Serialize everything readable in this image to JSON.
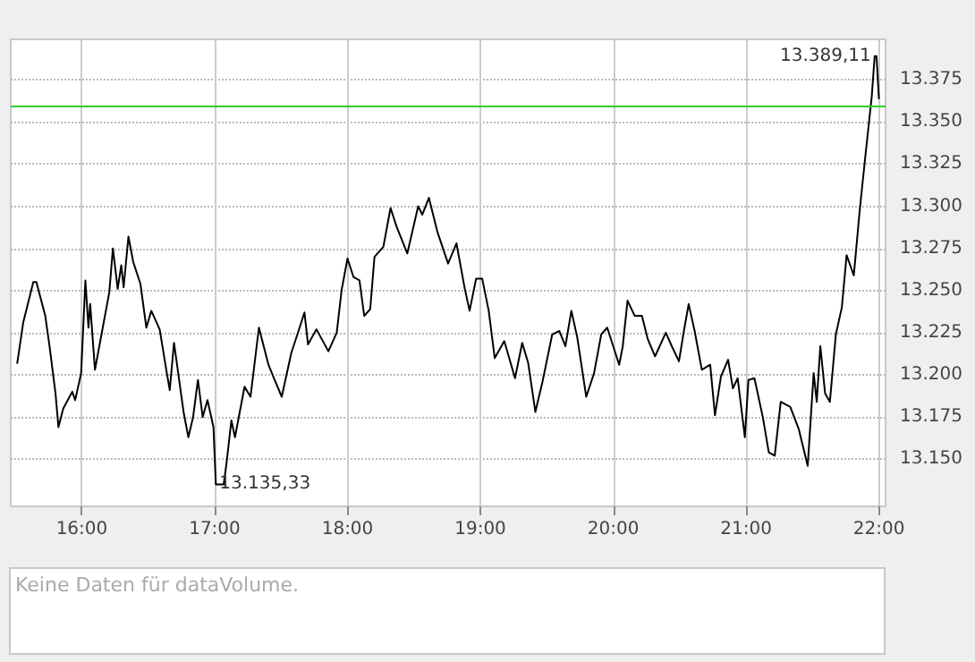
{
  "chart_data": {
    "type": "line",
    "color": "#000000",
    "grid": true,
    "marker": "none",
    "line_style": "solid",
    "xlim": [
      15.465,
      22.05
    ],
    "ylim": [
      13122,
      13399
    ],
    "xticks": [
      {
        "value": 16,
        "label": "16:00"
      },
      {
        "value": 17,
        "label": "17:00"
      },
      {
        "value": 18,
        "label": "18:00"
      },
      {
        "value": 19,
        "label": "19:00"
      },
      {
        "value": 20,
        "label": "20:00"
      },
      {
        "value": 21,
        "label": "21:00"
      },
      {
        "value": 22,
        "label": "22:00"
      }
    ],
    "yticks": [
      {
        "value": 13150,
        "label": "13.150"
      },
      {
        "value": 13175,
        "label": "13.175"
      },
      {
        "value": 13200,
        "label": "13.200"
      },
      {
        "value": 13225,
        "label": "13.225"
      },
      {
        "value": 13250,
        "label": "13.250"
      },
      {
        "value": 13275,
        "label": "13.275"
      },
      {
        "value": 13300,
        "label": "13.300"
      },
      {
        "value": 13325,
        "label": "13.325"
      },
      {
        "value": 13350,
        "label": "13.350"
      },
      {
        "value": 13375,
        "label": "13.375"
      }
    ],
    "ref_lines": [
      {
        "axis": "y",
        "value": 13359,
        "color": "#33cc33"
      }
    ],
    "annotations": [
      {
        "text": "13.135,33",
        "x": 17.009,
        "y": 13135.33
      },
      {
        "text": "13.389,11",
        "x": 21.968,
        "y": 13389.11
      },
      "Keine Daten für dataVolume."
    ],
    "x": [
      15.514,
      15.559,
      15.635,
      15.658,
      15.725,
      15.757,
      15.802,
      15.824,
      15.86,
      15.928,
      15.95,
      15.995,
      16.027,
      16.05,
      16.063,
      16.099,
      16.153,
      16.207,
      16.234,
      16.27,
      16.297,
      16.315,
      16.351,
      16.387,
      16.441,
      16.486,
      16.523,
      16.586,
      16.64,
      16.662,
      16.694,
      16.766,
      16.802,
      16.838,
      16.874,
      16.91,
      16.946,
      16.991,
      17.009,
      17.068,
      17.09,
      17.126,
      17.153,
      17.189,
      17.225,
      17.27,
      17.333,
      17.405,
      17.441,
      17.505,
      17.577,
      17.631,
      17.676,
      17.703,
      17.766,
      17.856,
      17.919,
      17.955,
      18.0,
      18.045,
      18.09,
      18.126,
      18.171,
      18.203,
      18.27,
      18.324,
      18.369,
      18.45,
      18.532,
      18.563,
      18.613,
      18.676,
      18.757,
      18.82,
      18.883,
      18.919,
      18.968,
      19.014,
      19.063,
      19.108,
      19.18,
      19.261,
      19.315,
      19.36,
      19.414,
      19.468,
      19.541,
      19.595,
      19.64,
      19.685,
      19.73,
      19.797,
      19.856,
      19.91,
      19.955,
      20.0,
      20.045,
      20.072,
      20.108,
      20.162,
      20.216,
      20.261,
      20.315,
      20.396,
      20.441,
      20.495,
      20.532,
      20.568,
      20.613,
      20.667,
      20.73,
      20.766,
      20.811,
      20.865,
      20.901,
      20.937,
      20.991,
      21.018,
      21.063,
      21.126,
      21.171,
      21.216,
      21.261,
      21.333,
      21.396,
      21.464,
      21.509,
      21.532,
      21.559,
      21.595,
      21.631,
      21.676,
      21.721,
      21.757,
      21.811,
      21.856,
      21.901,
      21.946,
      21.968,
      21.982,
      22.0
    ],
    "values": [
      13207,
      13231,
      13255,
      13255,
      13235,
      13217,
      13189,
      13169,
      13180,
      13190,
      13185,
      13201,
      13256,
      13228,
      13242,
      13203,
      13226,
      13249,
      13275,
      13251,
      13265,
      13252,
      13282,
      13267,
      13254,
      13228,
      13238,
      13227,
      13201,
      13191,
      13219,
      13178,
      13163,
      13175,
      13197,
      13175,
      13185,
      13169,
      13135,
      13135,
      13148,
      13173,
      13163,
      13178,
      13193,
      13187,
      13228,
      13206,
      13199,
      13187,
      13213,
      13226,
      13237,
      13218,
      13227,
      13214,
      13225,
      13250,
      13269,
      13258,
      13256,
      13235,
      13239,
      13270,
      13276,
      13299,
      13288,
      13272,
      13300,
      13295,
      13305,
      13285,
      13266,
      13278,
      13251,
      13238,
      13257,
      13257,
      13238,
      13210,
      13220,
      13198,
      13219,
      13207,
      13178,
      13196,
      13224,
      13226,
      13217,
      13238,
      13222,
      13187,
      13201,
      13224,
      13228,
      13217,
      13206,
      13217,
      13244,
      13235,
      13235,
      13221,
      13211,
      13225,
      13217,
      13208,
      13226,
      13242,
      13226,
      13203,
      13206,
      13176,
      13199,
      13209,
      13192,
      13198,
      13163,
      13197,
      13198,
      13175,
      13154,
      13152,
      13184,
      13181,
      13168,
      13146,
      13201,
      13184,
      13217,
      13189,
      13184,
      13224,
      13240,
      13271,
      13259,
      13298,
      13332,
      13365,
      13389,
      13389,
      13364
    ]
  }
}
